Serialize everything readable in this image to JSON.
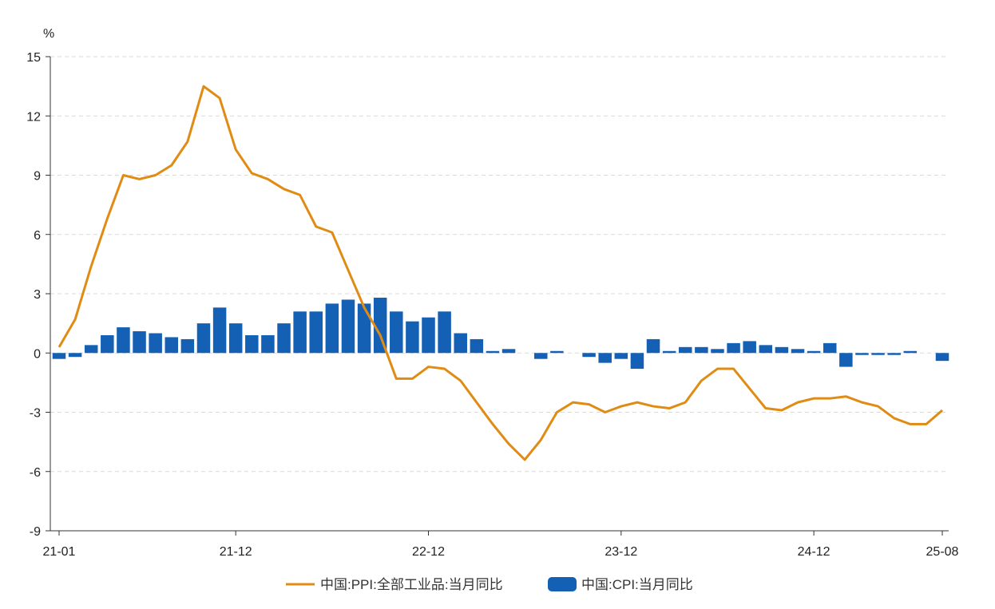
{
  "chart_data": {
    "type": "bar+line",
    "y_unit": "%",
    "ylim": [
      -9,
      15
    ],
    "yticks": [
      15,
      12,
      9,
      6,
      3,
      0,
      -3,
      -6,
      -9
    ],
    "x_tick_labels": [
      "21-01",
      "21-12",
      "22-12",
      "23-12",
      "24-12",
      "25-08"
    ],
    "grid": true,
    "legend_position": "bottom",
    "colors": {
      "ppi": "#E08C14",
      "cpi": "#1460B4"
    },
    "series": [
      {
        "name": "中国:PPI:全部工业品:当月同比",
        "type": "line",
        "values": [
          0.3,
          1.7,
          4.4,
          6.8,
          9.0,
          8.8,
          9.0,
          9.5,
          10.7,
          13.5,
          12.9,
          10.3,
          9.1,
          8.8,
          8.3,
          8.0,
          6.4,
          6.1,
          4.2,
          2.3,
          0.9,
          -1.3,
          -1.3,
          -0.7,
          -0.8,
          -1.4,
          -2.5,
          -3.6,
          -4.6,
          -5.4,
          -4.4,
          -3.0,
          -2.5,
          -2.6,
          -3.0,
          -2.7,
          -2.5,
          -2.7,
          -2.8,
          -2.5,
          -1.4,
          -0.8,
          -0.8,
          -1.8,
          -2.8,
          -2.9,
          -2.5,
          -2.3,
          -2.3,
          -2.2,
          -2.5,
          -2.7,
          -3.3,
          -3.6,
          -3.6,
          -2.9
        ]
      },
      {
        "name": "中国:CPI:当月同比",
        "type": "bar",
        "values": [
          -0.3,
          -0.2,
          0.4,
          0.9,
          1.3,
          1.1,
          1.0,
          0.8,
          0.7,
          1.5,
          2.3,
          1.5,
          0.9,
          0.9,
          1.5,
          2.1,
          2.1,
          2.5,
          2.7,
          2.5,
          2.8,
          2.1,
          1.6,
          1.8,
          2.1,
          1.0,
          0.7,
          0.1,
          0.2,
          0.0,
          -0.3,
          0.1,
          0.0,
          -0.2,
          -0.5,
          -0.3,
          -0.8,
          0.7,
          0.1,
          0.3,
          0.3,
          0.2,
          0.5,
          0.6,
          0.4,
          0.3,
          0.2,
          0.1,
          0.5,
          -0.7,
          -0.1,
          -0.1,
          -0.1,
          0.1,
          0.0,
          -0.4
        ]
      }
    ]
  }
}
